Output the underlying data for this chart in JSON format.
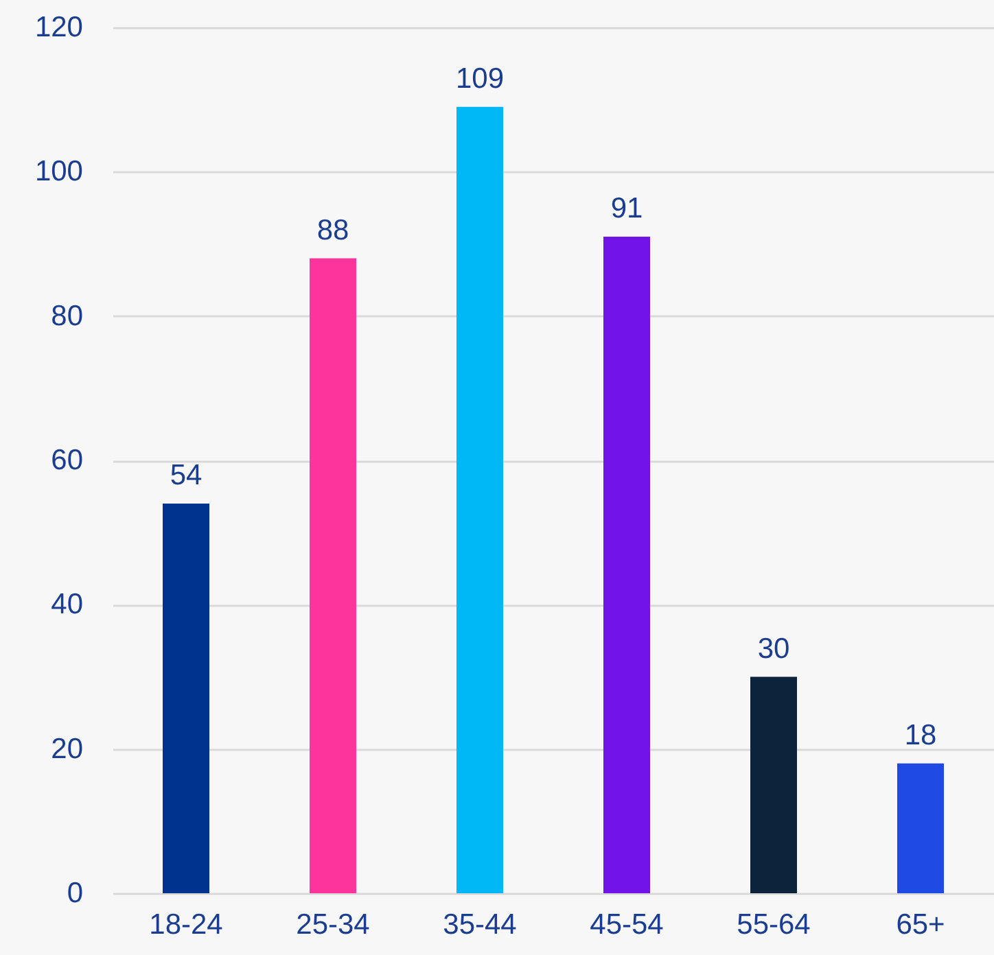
{
  "chart_data": {
    "type": "bar",
    "categories": [
      "18-24",
      "25-34",
      "35-44",
      "45-54",
      "55-64",
      "65+"
    ],
    "values": [
      54,
      88,
      109,
      91,
      30,
      18
    ],
    "colors": [
      "#00338d",
      "#fd349c",
      "#00b8f5",
      "#7213ea",
      "#0c233c",
      "#1e49e2"
    ],
    "ylim": [
      0,
      120
    ],
    "yticks": [
      0,
      20,
      40,
      60,
      80,
      100,
      120
    ],
    "grid": "y",
    "data_labels": true
  }
}
